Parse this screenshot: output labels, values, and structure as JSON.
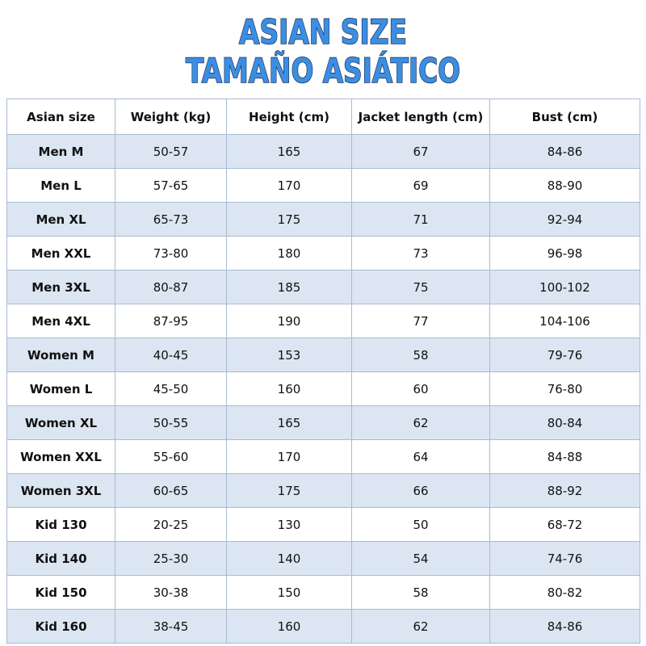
{
  "header": {
    "title": [
      "ASIAN SIZE",
      "TAMAÑO ASIÁTICO"
    ]
  },
  "table": {
    "columns": [
      "Asian size",
      "Weight (kg)",
      "Height (cm)",
      "Jacket length (cm)",
      "Bust (cm)"
    ],
    "rows": [
      [
        "Men M",
        "50-57",
        "165",
        "67",
        "84-86"
      ],
      [
        "Men L",
        "57-65",
        "170",
        "69",
        "88-90"
      ],
      [
        "Men XL",
        "65-73",
        "175",
        "71",
        "92-94"
      ],
      [
        "Men XXL",
        "73-80",
        "180",
        "73",
        "96-98"
      ],
      [
        "Men 3XL",
        "80-87",
        "185",
        "75",
        "100-102"
      ],
      [
        "Men 4XL",
        "87-95",
        "190",
        "77",
        "104-106"
      ],
      [
        "Women M",
        "40-45",
        "153",
        "58",
        "79-76"
      ],
      [
        "Women L",
        "45-50",
        "160",
        "60",
        "76-80"
      ],
      [
        "Women XL",
        "50-55",
        "165",
        "62",
        "80-84"
      ],
      [
        "Women XXL",
        "55-60",
        "170",
        "64",
        "84-88"
      ],
      [
        "Women 3XL",
        "60-65",
        "175",
        "66",
        "88-92"
      ],
      [
        "Kid 130",
        "20-25",
        "130",
        "50",
        "68-72"
      ],
      [
        "Kid 140",
        "25-30",
        "140",
        "54",
        "74-76"
      ],
      [
        "Kid 150",
        "30-38",
        "150",
        "58",
        "80-82"
      ],
      [
        "Kid 160",
        "38-45",
        "160",
        "62",
        "84-86"
      ]
    ]
  }
}
